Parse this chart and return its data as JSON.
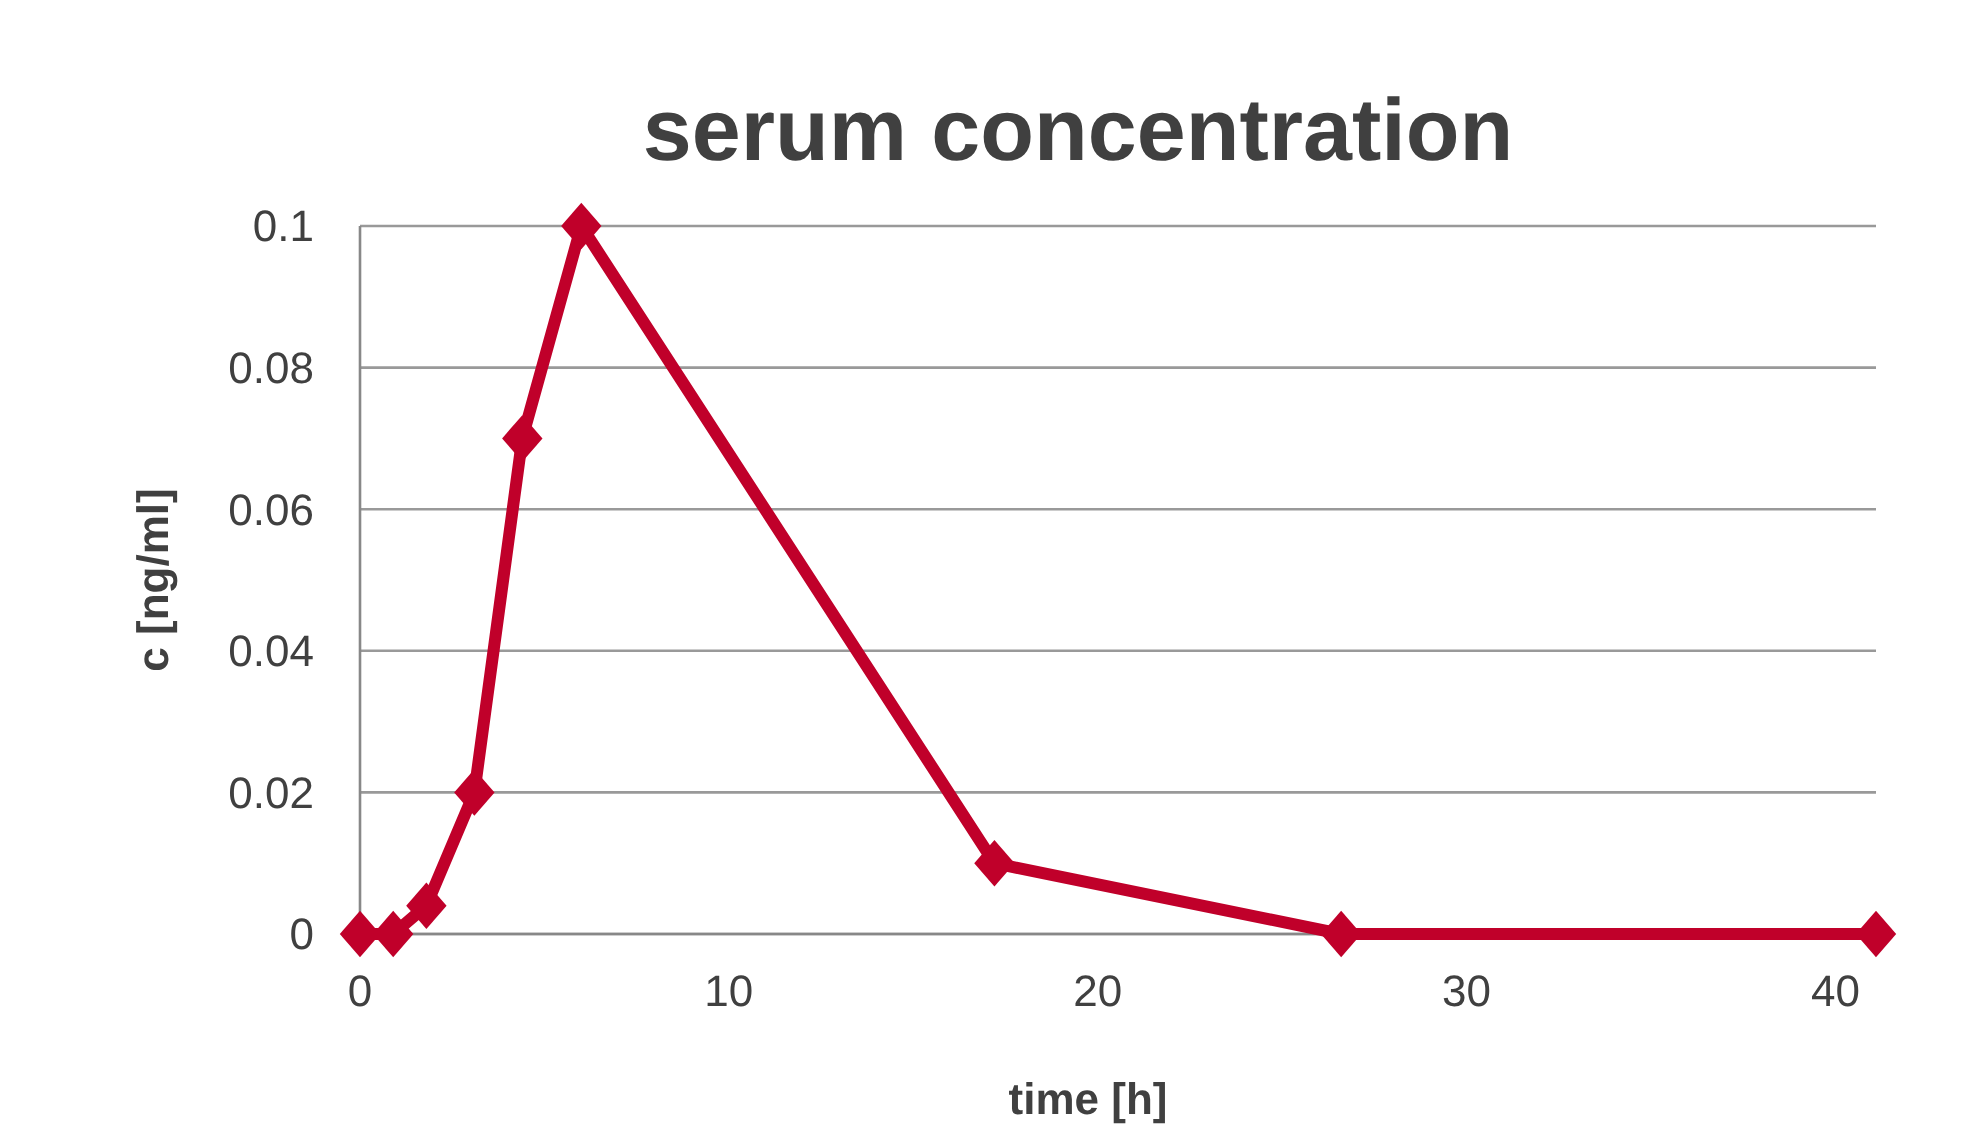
{
  "chart_data": {
    "type": "line",
    "title": "serum concentration",
    "xlabel": "time [h]",
    "ylabel": "c [ng/ml]",
    "x": [
      0,
      0.9,
      1.8,
      3.1,
      4.4,
      6,
      17.2,
      26.6,
      41.1
    ],
    "series": [
      {
        "color": "#c0002a",
        "values": [
          0,
          0,
          0.004,
          0.02,
          0.07,
          0.1,
          0.01,
          0,
          0
        ]
      }
    ],
    "xlim": [
      0,
      41.1
    ],
    "xticks": [
      0,
      10,
      20,
      30,
      40
    ],
    "ylim": [
      0,
      0.1
    ],
    "yticks": [
      0,
      {
        "value": 0.02,
        "label": "0.02"
      },
      {
        "value": 0.04,
        "label": "0.04"
      },
      {
        "value": 0.06,
        "label": "0.06"
      },
      {
        "value": 0.08,
        "label": "0.08"
      },
      0.1
    ],
    "grid": "y",
    "marker": "diamond",
    "line_style": "solid"
  }
}
